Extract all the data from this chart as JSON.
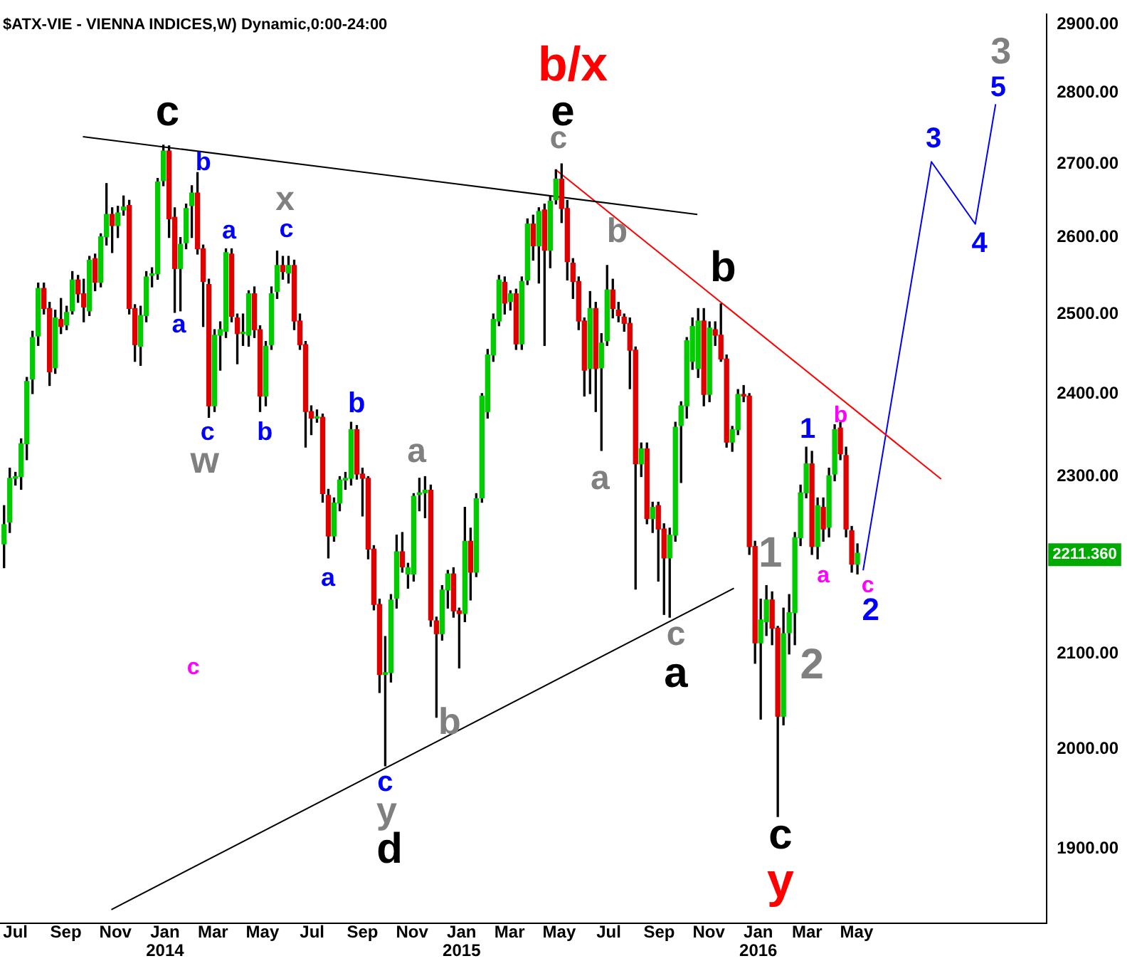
{
  "chart_data": {
    "type": "candlestick",
    "title": "$ATX-VIE - VIENNA INDICES,W) Dynamic,0:00-24:00",
    "x": [
      "2013-06-17",
      "2013-06-24",
      "2013-07-01",
      "2013-07-08",
      "2013-07-15",
      "2013-07-22",
      "2013-07-29",
      "2013-08-05",
      "2013-08-12",
      "2013-08-19",
      "2013-08-26",
      "2013-09-02",
      "2013-09-09",
      "2013-09-16",
      "2013-09-23",
      "2013-09-30",
      "2013-10-07",
      "2013-10-14",
      "2013-10-21",
      "2013-10-28",
      "2013-11-04",
      "2013-11-11",
      "2013-11-18",
      "2013-11-25",
      "2013-12-02",
      "2013-12-09",
      "2013-12-16",
      "2013-12-23",
      "2013-12-30",
      "2014-01-06",
      "2014-01-13",
      "2014-01-20",
      "2014-01-27",
      "2014-02-03",
      "2014-02-10",
      "2014-02-17",
      "2014-02-24",
      "2014-03-03",
      "2014-03-10",
      "2014-03-17",
      "2014-03-24",
      "2014-03-31",
      "2014-04-07",
      "2014-04-14",
      "2014-04-21",
      "2014-04-28",
      "2014-05-05",
      "2014-05-12",
      "2014-05-19",
      "2014-05-26",
      "2014-06-02",
      "2014-06-09",
      "2014-06-16",
      "2014-06-23",
      "2014-06-30",
      "2014-07-07",
      "2014-07-14",
      "2014-07-21",
      "2014-07-28",
      "2014-08-04",
      "2014-08-11",
      "2014-08-18",
      "2014-08-25",
      "2014-09-01",
      "2014-09-08",
      "2014-09-15",
      "2014-09-22",
      "2014-09-29",
      "2014-10-06",
      "2014-10-13",
      "2014-10-20",
      "2014-10-27",
      "2014-11-03",
      "2014-11-10",
      "2014-11-17",
      "2014-11-24",
      "2014-12-01",
      "2014-12-08",
      "2014-12-15",
      "2014-12-22",
      "2014-12-29",
      "2015-01-05",
      "2015-01-12",
      "2015-01-19",
      "2015-01-26",
      "2015-02-02",
      "2015-02-09",
      "2015-02-16",
      "2015-02-23",
      "2015-03-02",
      "2015-03-09",
      "2015-03-16",
      "2015-03-23",
      "2015-03-30",
      "2015-04-06",
      "2015-04-13",
      "2015-04-20",
      "2015-04-27",
      "2015-05-04",
      "2015-05-11",
      "2015-05-18",
      "2015-05-25",
      "2015-06-01",
      "2015-06-08",
      "2015-06-15",
      "2015-06-22",
      "2015-06-29",
      "2015-07-06",
      "2015-07-13",
      "2015-07-20",
      "2015-07-27",
      "2015-08-03",
      "2015-08-10",
      "2015-08-17",
      "2015-08-24",
      "2015-08-31",
      "2015-09-07",
      "2015-09-14",
      "2015-09-21",
      "2015-09-28",
      "2015-10-05",
      "2015-10-12",
      "2015-10-19",
      "2015-10-26",
      "2015-11-02",
      "2015-11-09",
      "2015-11-16",
      "2015-11-23",
      "2015-11-30",
      "2015-12-07",
      "2015-12-14",
      "2015-12-21",
      "2015-12-28",
      "2016-01-04",
      "2016-01-11",
      "2016-01-18",
      "2016-01-25",
      "2016-02-01",
      "2016-02-08",
      "2016-02-15",
      "2016-02-22",
      "2016-02-29",
      "2016-03-07",
      "2016-03-14",
      "2016-03-21",
      "2016-03-28",
      "2016-04-04",
      "2016-04-11",
      "2016-04-18",
      "2016-04-25",
      "2016-05-02"
    ],
    "ohlc": [
      [
        2222,
        2266,
        2195,
        2244
      ],
      [
        2247,
        2310,
        2235,
        2298
      ],
      [
        2298,
        2305,
        2290,
        2300
      ],
      [
        2300,
        2345,
        2285,
        2339
      ],
      [
        2339,
        2420,
        2320,
        2415
      ],
      [
        2418,
        2478,
        2400,
        2470
      ],
      [
        2472,
        2540,
        2460,
        2533
      ],
      [
        2533,
        2540,
        2500,
        2507
      ],
      [
        2507,
        2515,
        2410,
        2427
      ],
      [
        2432,
        2505,
        2425,
        2495
      ],
      [
        2493,
        2520,
        2475,
        2484
      ],
      [
        2486,
        2510,
        2480,
        2502
      ],
      [
        2504,
        2555,
        2500,
        2544
      ],
      [
        2544,
        2550,
        2515,
        2526
      ],
      [
        2526,
        2545,
        2490,
        2509
      ],
      [
        2504,
        2575,
        2498,
        2570
      ],
      [
        2572,
        2578,
        2530,
        2541
      ],
      [
        2541,
        2605,
        2535,
        2601
      ],
      [
        2601,
        2673,
        2590,
        2631
      ],
      [
        2631,
        2640,
        2580,
        2616
      ],
      [
        2616,
        2642,
        2600,
        2633
      ],
      [
        2637,
        2656,
        2630,
        2641
      ],
      [
        2643,
        2650,
        2500,
        2507
      ],
      [
        2507,
        2512,
        2440,
        2461
      ],
      [
        2459,
        2510,
        2435,
        2498
      ],
      [
        2498,
        2555,
        2490,
        2548
      ],
      [
        2550,
        2560,
        2535,
        2552
      ],
      [
        2552,
        2680,
        2545,
        2675
      ],
      [
        2677,
        2726,
        2670,
        2718
      ],
      [
        2718,
        2725,
        2600,
        2625
      ],
      [
        2627,
        2640,
        2502,
        2559
      ],
      [
        2559,
        2600,
        2504,
        2591
      ],
      [
        2593,
        2645,
        2585,
        2639
      ],
      [
        2643,
        2670,
        2600,
        2660
      ],
      [
        2660,
        2688,
        2578,
        2585
      ],
      [
        2585,
        2590,
        2484,
        2542
      ],
      [
        2538,
        2545,
        2371,
        2385
      ],
      [
        2385,
        2480,
        2378,
        2473
      ],
      [
        2473,
        2490,
        2429,
        2480
      ],
      [
        2478,
        2585,
        2470,
        2580
      ],
      [
        2578,
        2585,
        2490,
        2497
      ],
      [
        2495,
        2500,
        2437,
        2475
      ],
      [
        2475,
        2500,
        2460,
        2476
      ],
      [
        2473,
        2530,
        2459,
        2526
      ],
      [
        2526,
        2535,
        2470,
        2480
      ],
      [
        2480,
        2485,
        2378,
        2397
      ],
      [
        2397,
        2465,
        2385,
        2459
      ],
      [
        2461,
        2535,
        2455,
        2526
      ],
      [
        2529,
        2582,
        2520,
        2563
      ],
      [
        2563,
        2575,
        2545,
        2555
      ],
      [
        2553,
        2575,
        2540,
        2563
      ],
      [
        2563,
        2570,
        2480,
        2491
      ],
      [
        2491,
        2500,
        2455,
        2461
      ],
      [
        2461,
        2465,
        2335,
        2378
      ],
      [
        2378,
        2385,
        2350,
        2370
      ],
      [
        2370,
        2380,
        2365,
        2371
      ],
      [
        2371,
        2375,
        2270,
        2280
      ],
      [
        2278,
        2285,
        2206,
        2231
      ],
      [
        2231,
        2275,
        2225,
        2269
      ],
      [
        2269,
        2300,
        2260,
        2296
      ],
      [
        2296,
        2305,
        2285,
        2298
      ],
      [
        2298,
        2365,
        2290,
        2356
      ],
      [
        2356,
        2361,
        2297,
        2303
      ],
      [
        2303,
        2310,
        2254,
        2298
      ],
      [
        2298,
        2300,
        2205,
        2216
      ],
      [
        2216,
        2220,
        2148,
        2154
      ],
      [
        2154,
        2160,
        2059,
        2078
      ],
      [
        2078,
        2119,
        1983,
        2080
      ],
      [
        2080,
        2165,
        2070,
        2159
      ],
      [
        2161,
        2232,
        2150,
        2213
      ],
      [
        2213,
        2235,
        2190,
        2196
      ],
      [
        2188,
        2200,
        2172,
        2195
      ],
      [
        2188,
        2280,
        2180,
        2277
      ],
      [
        2279,
        2298,
        2260,
        2281
      ],
      [
        2281,
        2300,
        2252,
        2284
      ],
      [
        2284,
        2290,
        2130,
        2137
      ],
      [
        2136,
        2140,
        2033,
        2122
      ],
      [
        2122,
        2175,
        2115,
        2170
      ],
      [
        2170,
        2192,
        2150,
        2188
      ],
      [
        2188,
        2195,
        2140,
        2147
      ],
      [
        2147,
        2150,
        2085,
        2144
      ],
      [
        2144,
        2264,
        2135,
        2225
      ],
      [
        2225,
        2240,
        2159,
        2190
      ],
      [
        2190,
        2280,
        2185,
        2274
      ],
      [
        2275,
        2400,
        2270,
        2397
      ],
      [
        2378,
        2455,
        2370,
        2448
      ],
      [
        2448,
        2500,
        2440,
        2493
      ],
      [
        2491,
        2550,
        2485,
        2544
      ],
      [
        2541,
        2548,
        2500,
        2514
      ],
      [
        2516,
        2530,
        2505,
        2526
      ],
      [
        2526,
        2532,
        2455,
        2462
      ],
      [
        2462,
        2548,
        2455,
        2542
      ],
      [
        2544,
        2625,
        2538,
        2618
      ],
      [
        2618,
        2630,
        2570,
        2589
      ],
      [
        2589,
        2640,
        2540,
        2635
      ],
      [
        2637,
        2645,
        2460,
        2583
      ],
      [
        2583,
        2655,
        2560,
        2649
      ],
      [
        2651,
        2692,
        2645,
        2679
      ],
      [
        2679,
        2700,
        2620,
        2639
      ],
      [
        2639,
        2650,
        2544,
        2568
      ],
      [
        2566,
        2572,
        2520,
        2542
      ],
      [
        2542,
        2548,
        2480,
        2491
      ],
      [
        2491,
        2495,
        2397,
        2429
      ],
      [
        2431,
        2529,
        2400,
        2507
      ],
      [
        2507,
        2515,
        2378,
        2431
      ],
      [
        2432,
        2475,
        2331,
        2463
      ],
      [
        2466,
        2563,
        2460,
        2531
      ],
      [
        2531,
        2545,
        2495,
        2507
      ],
      [
        2505,
        2515,
        2490,
        2498
      ],
      [
        2496,
        2500,
        2478,
        2488
      ],
      [
        2488,
        2495,
        2406,
        2454
      ],
      [
        2454,
        2458,
        2171,
        2315
      ],
      [
        2315,
        2340,
        2300,
        2333
      ],
      [
        2333,
        2340,
        2245,
        2251
      ],
      [
        2251,
        2270,
        2235,
        2264
      ],
      [
        2266,
        2270,
        2180,
        2239
      ],
      [
        2239,
        2245,
        2143,
        2206
      ],
      [
        2206,
        2240,
        2140,
        2232
      ],
      [
        2232,
        2365,
        2225,
        2359
      ],
      [
        2361,
        2390,
        2293,
        2385
      ],
      [
        2385,
        2470,
        2370,
        2466
      ],
      [
        2440,
        2495,
        2430,
        2484
      ],
      [
        2431,
        2507,
        2420,
        2491
      ],
      [
        2491,
        2507,
        2385,
        2399
      ],
      [
        2399,
        2490,
        2390,
        2482
      ],
      [
        2480,
        2490,
        2460,
        2473
      ],
      [
        2473,
        2513,
        2440,
        2443
      ],
      [
        2443,
        2448,
        2335,
        2341
      ],
      [
        2341,
        2360,
        2330,
        2356
      ],
      [
        2356,
        2405,
        2350,
        2399
      ],
      [
        2399,
        2410,
        2390,
        2397
      ],
      [
        2397,
        2400,
        2210,
        2219
      ],
      [
        2219,
        2225,
        2090,
        2112
      ],
      [
        2112,
        2160,
        2031,
        2137
      ],
      [
        2135,
        2175,
        2120,
        2159
      ],
      [
        2159,
        2168,
        2110,
        2128
      ],
      [
        2128,
        2130,
        1932,
        2034
      ],
      [
        2034,
        2150,
        2025,
        2122
      ],
      [
        2123,
        2165,
        2100,
        2145
      ],
      [
        2145,
        2235,
        2110,
        2229
      ],
      [
        2229,
        2290,
        2220,
        2281
      ],
      [
        2281,
        2335,
        2275,
        2315
      ],
      [
        2315,
        2330,
        2210,
        2219
      ],
      [
        2219,
        2275,
        2205,
        2266
      ],
      [
        2264,
        2275,
        2225,
        2239
      ],
      [
        2241,
        2310,
        2230,
        2301
      ],
      [
        2303,
        2362,
        2295,
        2356
      ],
      [
        2358,
        2365,
        2320,
        2327
      ],
      [
        2325,
        2335,
        2230,
        2239
      ],
      [
        2237,
        2242,
        2190,
        2199
      ],
      [
        2199,
        2222,
        2188,
        2211.36
      ]
    ],
    "series": [
      {
        "type": "line",
        "color": "#000000",
        "x": [
          "2013-09-22",
          "2015-10-18"
        ],
        "values": [
          2738,
          2631
        ]
      },
      {
        "type": "line",
        "color": "#000000",
        "x": [
          "2013-10-27",
          "2015-12-02"
        ],
        "values": [
          1842,
          2172
        ]
      },
      {
        "type": "line",
        "color": "#ff0000",
        "x": [
          "2015-04-28",
          "2016-08-13"
        ],
        "values": [
          2691,
          2297
        ]
      },
      {
        "type": "line",
        "color": "#0000ff",
        "x": [
          "2016-05-09",
          "2016-08-01",
          "2016-09-24",
          "2016-10-19"
        ],
        "values": [
          2192,
          2703,
          2618,
          2784
        ]
      }
    ],
    "xlim": [
      "2013-06-12",
      "2016-12-21"
    ],
    "xticks": [
      {
        "value": "2013-07-01",
        "label": "Jul"
      },
      {
        "value": "2013-09-01",
        "label": "Sep"
      },
      {
        "value": "2013-11-01",
        "label": "Nov"
      },
      {
        "value": "2014-01-01",
        "label": "Jan\n2014"
      },
      {
        "value": "2014-03-01",
        "label": "Mar"
      },
      {
        "value": "2014-05-01",
        "label": "May"
      },
      {
        "value": "2014-07-01",
        "label": "Jul"
      },
      {
        "value": "2014-09-01",
        "label": "Sep"
      },
      {
        "value": "2014-11-01",
        "label": "Nov"
      },
      {
        "value": "2015-01-01",
        "label": "Jan\n2015"
      },
      {
        "value": "2015-03-01",
        "label": "Mar"
      },
      {
        "value": "2015-05-01",
        "label": "May"
      },
      {
        "value": "2015-07-01",
        "label": "Jul"
      },
      {
        "value": "2015-09-01",
        "label": "Sep"
      },
      {
        "value": "2015-11-01",
        "label": "Nov"
      },
      {
        "value": "2016-01-01",
        "label": "Jan\n2016"
      },
      {
        "value": "2016-03-01",
        "label": "Mar"
      },
      {
        "value": "2016-05-01",
        "label": "May"
      }
    ],
    "ylim": [
      1829,
      2915
    ],
    "yticks": [
      {
        "value": 1900,
        "label": "1900.00"
      },
      {
        "value": 2000,
        "label": "2000.00"
      },
      {
        "value": 2100,
        "label": "2100.00"
      },
      {
        "value": 2300,
        "label": "2300.00"
      },
      {
        "value": 2400,
        "label": "2400.00"
      },
      {
        "value": 2500,
        "label": "2500.00"
      },
      {
        "value": 2600,
        "label": "2600.00"
      },
      {
        "value": 2700,
        "label": "2700.00"
      },
      {
        "value": 2800,
        "label": "2800.00"
      },
      {
        "value": 2900,
        "label": "2900.00"
      }
    ],
    "log": "y",
    "grid": false,
    "legend": false,
    "marker": "none",
    "annotations": [
      "c",
      "b",
      "a",
      "x",
      "c",
      "a",
      "c",
      "w",
      "b",
      "b",
      "a",
      "a",
      "c",
      "c",
      "y",
      "d",
      "b",
      "b/x",
      "e",
      "c",
      "b",
      "a",
      "b",
      "c",
      "a",
      "1",
      "b",
      "1",
      "a",
      "c",
      "2",
      "2",
      "c",
      "y",
      "3",
      "4",
      "5",
      "3",
      "2211.360"
    ]
  }
}
